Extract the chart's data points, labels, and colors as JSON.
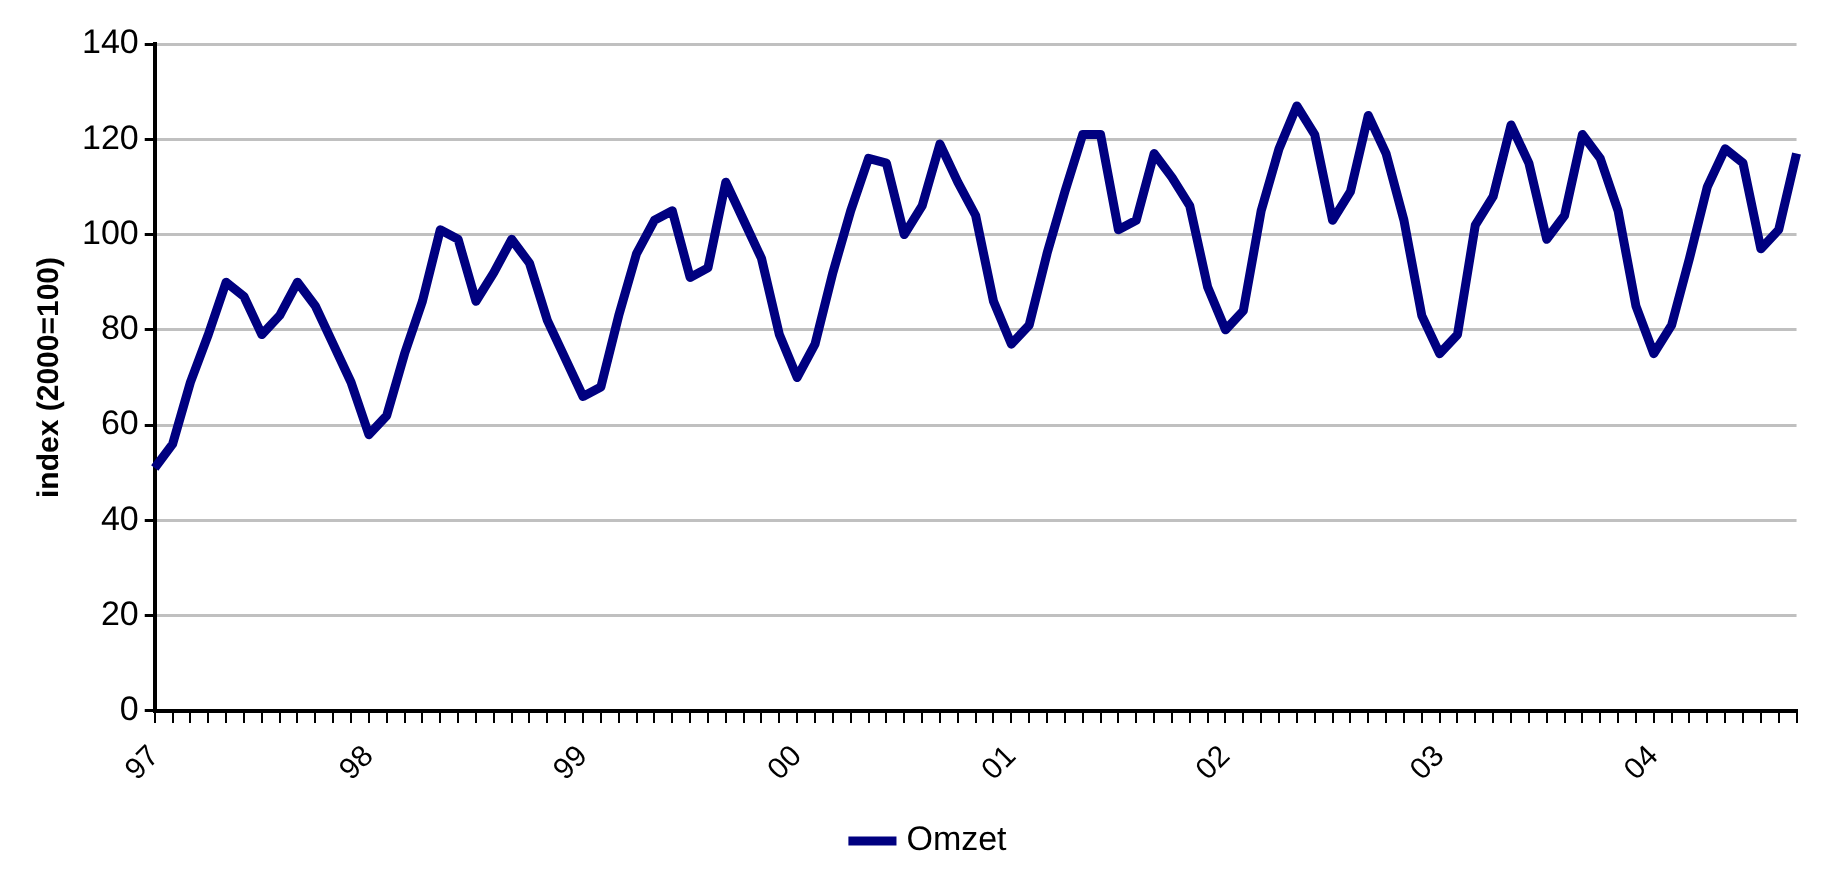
{
  "chart_data": {
    "type": "line",
    "ylabel": "index (2000=100)",
    "categories": [
      "97",
      null,
      null,
      null,
      null,
      null,
      null,
      null,
      null,
      null,
      null,
      null,
      "98",
      null,
      null,
      null,
      null,
      null,
      null,
      null,
      null,
      null,
      null,
      null,
      "99",
      null,
      null,
      null,
      null,
      null,
      null,
      null,
      null,
      null,
      null,
      null,
      "00",
      null,
      null,
      null,
      null,
      null,
      null,
      null,
      null,
      null,
      null,
      null,
      "01",
      null,
      null,
      null,
      null,
      null,
      null,
      null,
      null,
      null,
      null,
      null,
      "02",
      null,
      null,
      null,
      null,
      null,
      null,
      null,
      null,
      null,
      null,
      null,
      "03",
      null,
      null,
      null,
      null,
      null,
      null,
      null,
      null,
      null,
      null,
      null,
      "04",
      null,
      null,
      null,
      null,
      null,
      null,
      null,
      null
    ],
    "series": [
      {
        "name": "Omzet",
        "color": "#000080",
        "values": [
          51,
          56,
          69,
          79,
          90,
          87,
          79,
          83,
          90,
          85,
          77,
          69,
          58,
          62,
          75,
          86,
          101,
          99,
          86,
          92,
          99,
          94,
          82,
          74,
          66,
          68,
          83,
          96,
          103,
          105,
          91,
          93,
          111,
          103,
          95,
          79,
          70,
          77,
          92,
          105,
          116,
          115,
          100,
          106,
          119,
          111,
          104,
          86,
          77,
          81,
          96,
          109,
          121,
          121,
          101,
          103,
          117,
          112,
          106,
          89,
          80,
          84,
          105,
          118,
          127,
          121,
          103,
          109,
          125,
          117,
          103,
          83,
          75,
          79,
          102,
          108,
          123,
          115,
          99,
          104,
          121,
          116,
          105,
          85,
          75,
          81,
          95,
          110,
          118,
          115,
          97,
          101,
          117
        ]
      }
    ],
    "ylim": [
      0,
      140
    ],
    "yticks": [
      0,
      20,
      40,
      60,
      80,
      100,
      120,
      140
    ],
    "grid": "y",
    "legend": "bottom",
    "marker": "none",
    "line_style": "solid"
  }
}
